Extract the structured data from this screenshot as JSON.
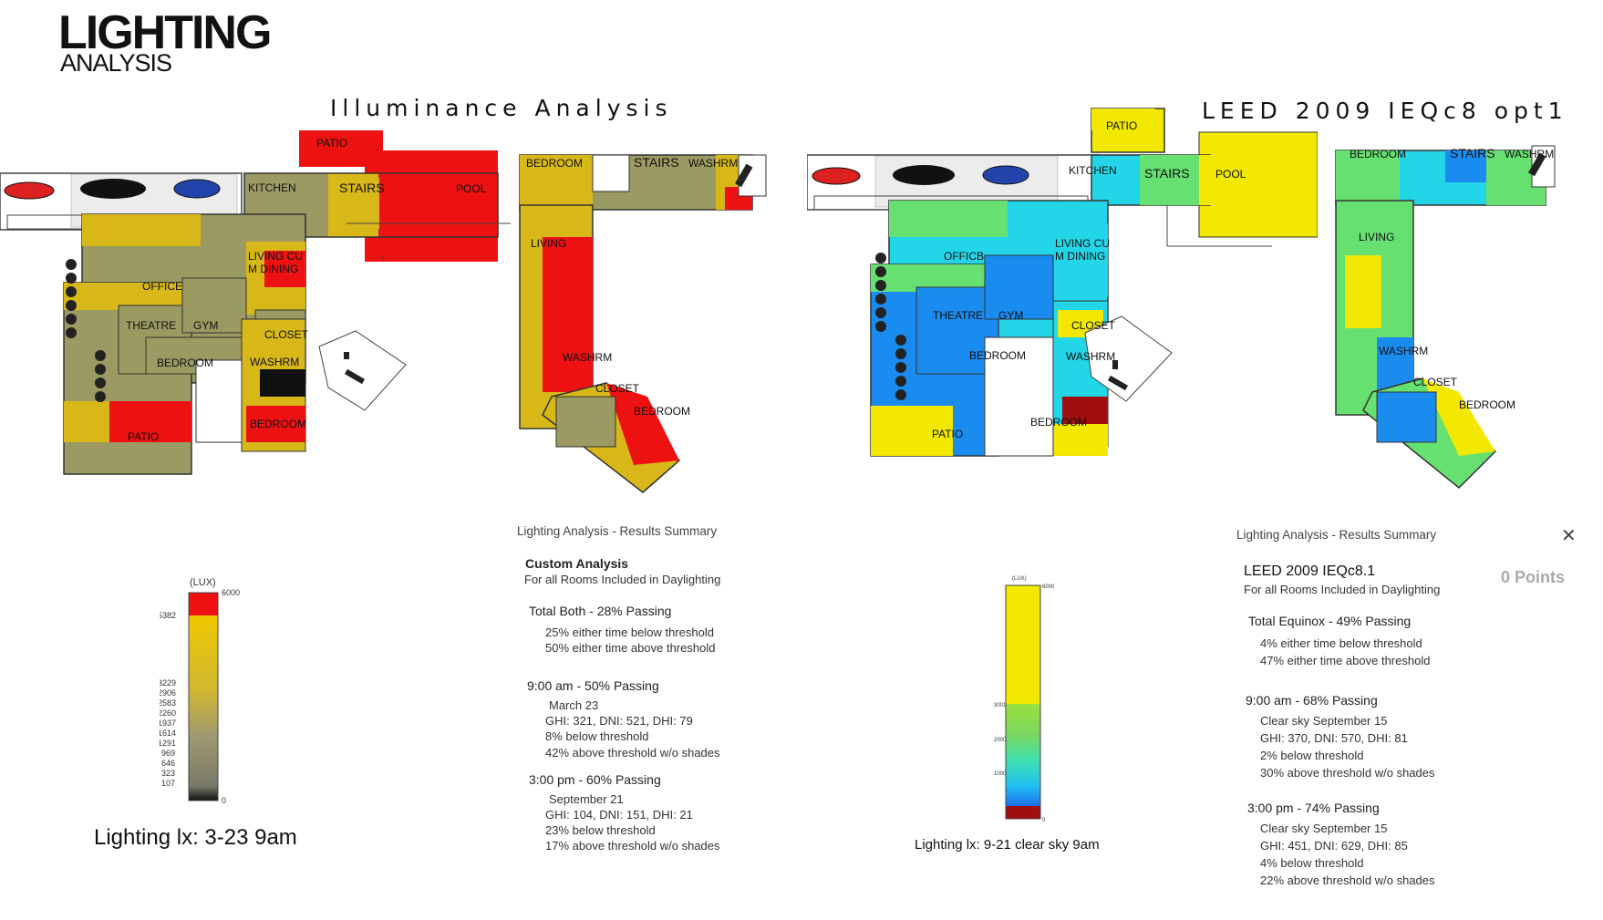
{
  "header": {
    "title": "LIGHTING",
    "subtitle": "ANALYSIS"
  },
  "left": {
    "section_title": "Illuminance Analysis",
    "rooms_a": {
      "patio_top": "PATIO",
      "kitchen": "KITCHEN",
      "stairs": "STAIRS",
      "pool": "POOL",
      "living": "LIVING CU",
      "dining": "M DINING",
      "office": "OFFICE",
      "theatre": "THEATRE",
      "gym": "GYM",
      "closet": "CLOSET",
      "bedroom": "BEDROOM",
      "washrm": "WASHRM",
      "bedroom2": "BEDROOM",
      "patio_bottom": "PATIO"
    },
    "rooms_b": {
      "bedroom": "BEDROOM",
      "stairs": "STAIRS",
      "washrm": "WASHRM",
      "living": "LIVING",
      "washrm2": "WASHRM",
      "closet": "CLOSET",
      "bedroom2": "BEDROOM"
    },
    "legend": {
      "unit": "(LUX)",
      "ticks": [
        "6000",
        "5382",
        "3229",
        "2906",
        "2583",
        "2260",
        "1937",
        "1614",
        "1291",
        "969",
        "646",
        "323",
        "107",
        "0"
      ]
    },
    "caption": "Lighting lx: 3-23 9am",
    "summary": {
      "heading": "Lighting Analysis - Results Summary",
      "analysis": "Custom Analysis",
      "scope": "For all Rooms Included in Daylighting",
      "total": "Total Both  - 28% Passing",
      "total_l1": "25% either time below threshold",
      "total_l2": "50% either time above threshold",
      "am": "9:00 am  - 50% Passing",
      "am_date": "March 23",
      "am_l1": "GHI: 321, DNI: 521, DHI: 79",
      "am_l2": "8% below threshold",
      "am_l3": "42% above threshold w/o shades",
      "pm": "3:00 pm  - 60% Passing",
      "pm_date": "September 21",
      "pm_l1": "GHI: 104, DNI: 151, DHI: 21",
      "pm_l2": "23% below threshold",
      "pm_l3": "17% above threshold w/o shades"
    }
  },
  "right": {
    "section_title": "LEED 2009 IEQc8 opt1",
    "rooms_a": {
      "patio_top": "PATIO",
      "kitchen": "KITCHEN",
      "stairs": "STAIRS",
      "pool": "POOL",
      "living": "LIVING CU",
      "dining": "M DINING",
      "office": "OFFICB",
      "theatre": "THEATRE",
      "gym": "GYM",
      "closet": "CLOSET",
      "bedroom": "BEDROOM",
      "washrm": "WASHRM",
      "bedroom2": "BEDROOM",
      "patio_bottom": "PATIO"
    },
    "rooms_b": {
      "bedroom": "BEDROOM",
      "stairs": "STAIRS",
      "washrm": "WASHRM",
      "living": "LIVING",
      "washrm2": "WASHRM",
      "closet": "CLOSET",
      "bedroom2": "BEDROOM"
    },
    "legend": {
      "unit": "(LUX)",
      "ticks": [
        "6000",
        "3001",
        "2000",
        "1000",
        "0"
      ]
    },
    "caption": "Lighting lx: 9-21 clear sky 9am",
    "summary": {
      "heading": "Lighting Analysis - Results Summary",
      "close": "✕",
      "analysis": "LEED 2009 IEQc8.1",
      "points": "0 Points",
      "scope": "For all Rooms Included in Daylighting",
      "total": "Total Equinox  - 49% Passing",
      "total_l1": "4% either time below threshold",
      "total_l2": "47% either time above threshold",
      "am": "9:00 am  - 68% Passing",
      "am_date": "Clear sky September 15",
      "am_l1": "GHI: 370, DNI: 570, DHI: 81",
      "am_l2": "2% below threshold",
      "am_l3": "30% above threshold w/o shades",
      "pm": "3:00 pm  - 74% Passing",
      "pm_date": "Clear sky September 15",
      "pm_l1": "GHI: 451, DNI: 629, DHI: 85",
      "pm_l2": "4% below threshold",
      "pm_l3": "22% above threshold w/o shades"
    }
  },
  "colors": {
    "red": "#ee1111",
    "olive": "#9a9a62",
    "amber": "#d8b818",
    "yellow": "#f2e800",
    "cyan": "#22d6e8",
    "blue": "#1a8cf0",
    "green": "#66e070",
    "darkred": "#a00f0f"
  }
}
